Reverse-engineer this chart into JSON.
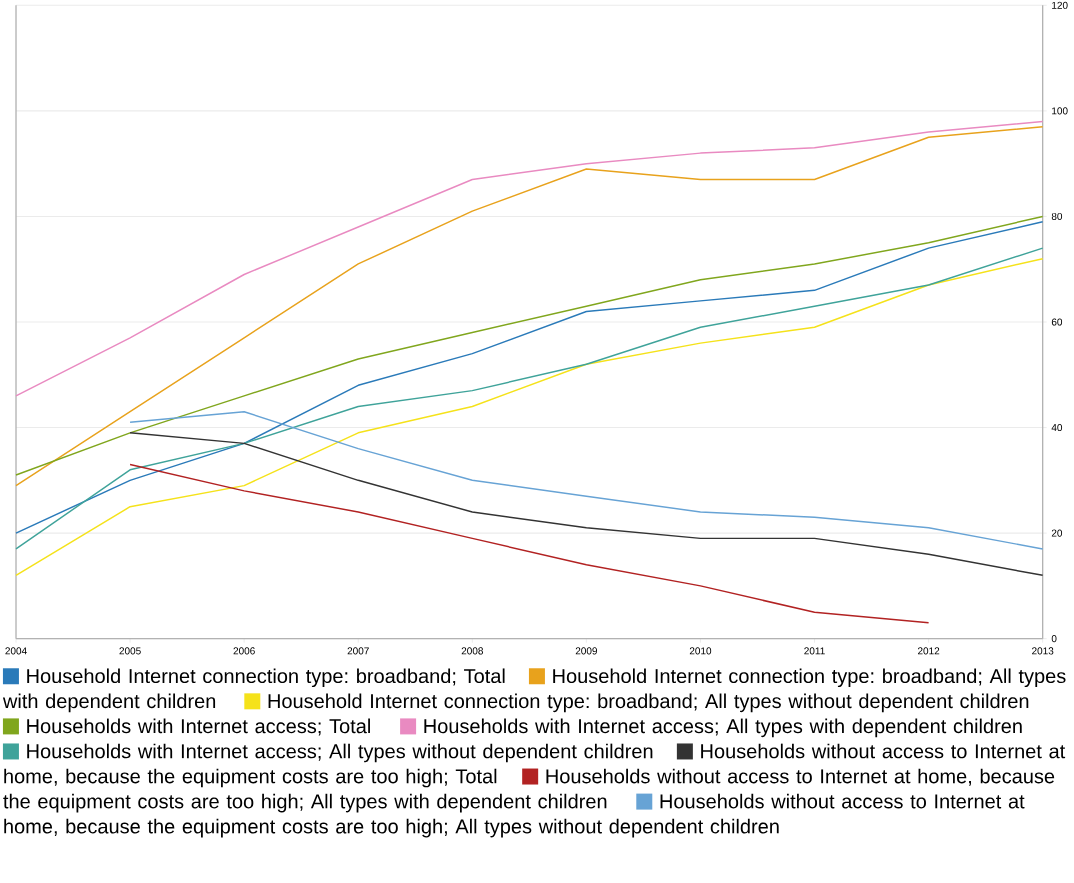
{
  "chart_data": {
    "type": "line",
    "x": [
      2004,
      2005,
      2006,
      2007,
      2008,
      2009,
      2010,
      2011,
      2012,
      2013
    ],
    "xlim": [
      2004,
      2013
    ],
    "xticks": [
      2004,
      2005,
      2006,
      2007,
      2008,
      2009,
      2010,
      2011,
      2012,
      2013
    ],
    "ylim": [
      0,
      120
    ],
    "yticks": [
      0,
      20,
      40,
      60,
      80,
      100,
      120
    ],
    "grid": "y",
    "legend": "bottom",
    "series": [
      {
        "name": "Household Internet connection type: broadband; Total",
        "color": "#2a7ab9",
        "values": [
          20,
          30,
          37,
          48,
          54,
          62,
          64,
          66,
          74,
          79
        ]
      },
      {
        "name": "Household Internet connection type: broadband; All types with dependent children",
        "color": "#e8a21c",
        "values": [
          29,
          43,
          57,
          71,
          81,
          89,
          87,
          87,
          95,
          97
        ]
      },
      {
        "name": "Household Internet connection type: broadband; All types without dependent children",
        "color": "#f5e21a",
        "values": [
          12,
          25,
          29,
          39,
          44,
          52,
          56,
          59,
          67,
          72
        ]
      },
      {
        "name": "Households with Internet access; Total",
        "color": "#80a61d",
        "values": [
          31,
          39,
          46,
          53,
          58,
          63,
          68,
          71,
          75,
          80
        ]
      },
      {
        "name": "Households with Internet access; All types with dependent children",
        "color": "#e98ac1",
        "values": [
          46,
          57,
          69,
          78,
          87,
          90,
          92,
          93,
          96,
          98
        ]
      },
      {
        "name": "Households with Internet access; All types without dependent children",
        "color": "#3fa39a",
        "values": [
          17,
          32,
          37,
          44,
          47,
          52,
          59,
          63,
          67,
          74
        ]
      },
      {
        "name": "Households without access to Internet at home, because the equipment costs are too high; Total",
        "color": "#333333",
        "values": [
          null,
          39,
          37,
          30,
          24,
          21,
          19,
          19,
          16,
          12
        ]
      },
      {
        "name": "Households without access to Internet at home, because the equipment costs are too high; All types with dependent children",
        "color": "#b22222",
        "values": [
          null,
          33,
          28,
          24,
          19,
          14,
          10,
          5,
          3,
          null
        ]
      },
      {
        "name": "Households without access to Internet at home, because the equipment costs are too high; All types without dependent children",
        "color": "#67a3d5",
        "values": [
          null,
          41,
          43,
          36,
          30,
          27,
          24,
          23,
          21,
          17
        ]
      }
    ]
  }
}
